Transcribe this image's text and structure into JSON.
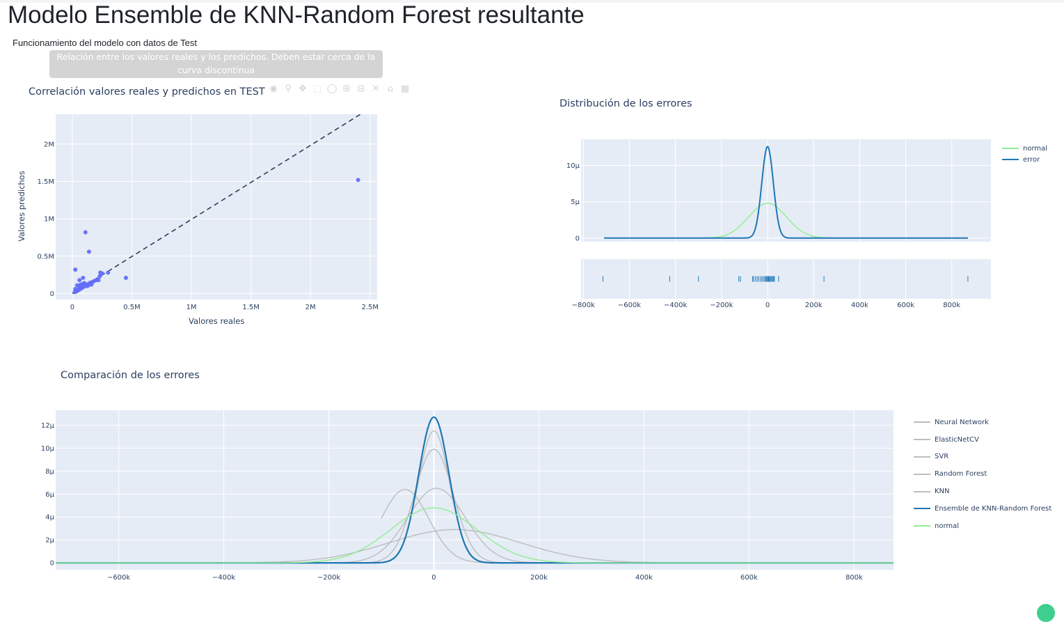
{
  "header": {
    "title": "Modelo Ensemble de KNN-Random Forest resultante",
    "subtitle": "Funcionamiento del modelo con datos de Test",
    "tooltip": "Relación entre los valores reales y los predichos. Deben estar cerca de la curva discontinua"
  },
  "colors": {
    "plot_bg": "#e5ecf6",
    "scatter": "#636efa",
    "error": "#1f77b4",
    "normal": "#90ee90",
    "other_models": "#bdbdbd",
    "dashed_line": "#2a3f5f"
  },
  "modebar": {
    "icons": [
      "camera-icon",
      "zoom-icon",
      "pan-icon",
      "box-select-icon",
      "lasso-icon",
      "zoom-in-icon",
      "zoom-out-icon",
      "autoscale-icon",
      "reset-axes-icon",
      "plotly-logo-icon"
    ]
  },
  "chart_data": [
    {
      "type": "scatter",
      "title": "Correlación valores reales y predichos en TEST",
      "xlabel": "Valores reales",
      "ylabel": "Valores predichos",
      "xlim": [
        -140000,
        2560000
      ],
      "ylim": [
        -80000,
        2400000
      ],
      "xticks": [
        0,
        500000,
        1000000,
        1500000,
        2000000,
        2500000
      ],
      "xticklabels": [
        "0",
        "0.5M",
        "1M",
        "1.5M",
        "2M",
        "2.5M"
      ],
      "yticks": [
        0,
        500000,
        1000000,
        1500000,
        2000000
      ],
      "yticklabels": [
        "0",
        "0.5M",
        "1M",
        "1.5M",
        "2M"
      ],
      "reference_line": {
        "style": "dashed",
        "x": [
          0,
          2420000
        ],
        "y": [
          0,
          2400000
        ]
      },
      "points": [
        [
          20000,
          20000
        ],
        [
          30000,
          25000
        ],
        [
          35000,
          40000
        ],
        [
          40000,
          35000
        ],
        [
          45000,
          50000
        ],
        [
          50000,
          45000
        ],
        [
          55000,
          60000
        ],
        [
          60000,
          55000
        ],
        [
          65000,
          70000
        ],
        [
          70000,
          65000
        ],
        [
          75000,
          80000
        ],
        [
          80000,
          75000
        ],
        [
          85000,
          90000
        ],
        [
          90000,
          85000
        ],
        [
          95000,
          100000
        ],
        [
          100000,
          95000
        ],
        [
          105000,
          110000
        ],
        [
          110000,
          105000
        ],
        [
          120000,
          115000
        ],
        [
          130000,
          125000
        ],
        [
          140000,
          130000
        ],
        [
          150000,
          145000
        ],
        [
          160000,
          140000
        ],
        [
          170000,
          155000
        ],
        [
          180000,
          165000
        ],
        [
          200000,
          180000
        ],
        [
          25000,
          60000
        ],
        [
          40000,
          110000
        ],
        [
          60000,
          90000
        ],
        [
          70000,
          120000
        ],
        [
          90000,
          130000
        ],
        [
          100000,
          140000
        ],
        [
          110000,
          120000
        ],
        [
          125000,
          100000
        ],
        [
          140000,
          115000
        ],
        [
          160000,
          120000
        ],
        [
          60000,
          180000
        ],
        [
          90000,
          210000
        ],
        [
          220000,
          180000
        ],
        [
          230000,
          230000
        ],
        [
          235000,
          280000
        ],
        [
          250000,
          270000
        ],
        [
          300000,
          280000
        ],
        [
          25000,
          320000
        ],
        [
          110000,
          820000
        ],
        [
          140000,
          560000
        ],
        [
          450000,
          210000
        ],
        [
          2400000,
          1520000
        ]
      ]
    },
    {
      "type": "line",
      "title": "Distribución de los errores",
      "xlim": [
        -810000,
        970000
      ],
      "ylim": [
        -0.5,
        13.6
      ],
      "ytick_unit": "µ",
      "yticks": [
        0,
        5,
        10
      ],
      "yticklabels": [
        "0",
        "5µ",
        "10µ"
      ],
      "xticks": [
        -800000,
        -600000,
        -400000,
        -200000,
        0,
        200000,
        400000,
        600000,
        800000
      ],
      "xticklabels": [
        "−800k",
        "−600k",
        "−400k",
        "−200k",
        "0",
        "200k",
        "400k",
        "600k",
        "800k"
      ],
      "series": [
        {
          "name": "normal",
          "kind": "gaussian",
          "mean": 0,
          "amplitude": 4.8,
          "sigma": 82000,
          "color": "#90ee90",
          "x_range": [
            -710000,
            870000
          ]
        },
        {
          "name": "error",
          "kind": "gaussian",
          "mean": 0,
          "amplitude": 12.6,
          "sigma": 25000,
          "color": "#1f77b4",
          "x_range": [
            -710000,
            870000
          ]
        }
      ],
      "rug": [
        -715000,
        -425000,
        -300000,
        -125000,
        -118000,
        -65000,
        -60000,
        -52000,
        -45000,
        -38000,
        -30000,
        -24000,
        -18000,
        -12000,
        -8000,
        -4000,
        0,
        3000,
        6000,
        10000,
        14000,
        18000,
        22000,
        26000,
        30000,
        48000,
        245000,
        870000
      ]
    },
    {
      "type": "line",
      "title": "Comparación de los errores",
      "xlim": [
        -720000,
        875000
      ],
      "ylim": [
        -0.6,
        13.3
      ],
      "ytick_unit": "µ",
      "yticks": [
        0,
        2,
        4,
        6,
        8,
        10,
        12
      ],
      "yticklabels": [
        "0",
        "2µ",
        "4µ",
        "6µ",
        "8µ",
        "10µ",
        "12µ"
      ],
      "xticks": [
        -600000,
        -400000,
        -200000,
        0,
        200000,
        400000,
        600000,
        800000
      ],
      "xticklabels": [
        "−600k",
        "−400k",
        "−200k",
        "0",
        "200k",
        "400k",
        "600k",
        "800k"
      ],
      "series": [
        {
          "name": "Neural Network",
          "kind": "gaussian",
          "mean": 40000,
          "amplitude": 2.9,
          "sigma": 125000,
          "color": "#bdbdbd",
          "x_range": [
            -720000,
            875000
          ]
        },
        {
          "name": "ElasticNetCV",
          "kind": "gaussian",
          "mean": 0,
          "amplitude": 11.5,
          "sigma": 30000,
          "color": "#bdbdbd",
          "x_range": [
            -720000,
            875000
          ]
        },
        {
          "name": "SVR",
          "kind": "gaussian",
          "mean": -55000,
          "amplitude": 6.4,
          "sigma": 45000,
          "color": "#bdbdbd",
          "x_range": [
            -100000,
            220000
          ]
        },
        {
          "name": "Random Forest",
          "kind": "gaussian",
          "mean": 0,
          "amplitude": 9.9,
          "sigma": 37000,
          "color": "#bdbdbd",
          "x_range": [
            -720000,
            875000
          ]
        },
        {
          "name": "KNN",
          "kind": "gaussian",
          "mean": 5000,
          "amplitude": 6.5,
          "sigma": 55000,
          "color": "#bdbdbd",
          "x_range": [
            -720000,
            875000
          ]
        },
        {
          "name": "Ensemble de KNN-Random Forest",
          "kind": "gaussian",
          "mean": 0,
          "amplitude": 12.7,
          "sigma": 29000,
          "color": "#1f77b4",
          "x_range": [
            -720000,
            875000
          ]
        },
        {
          "name": "normal",
          "kind": "gaussian",
          "mean": 0,
          "amplitude": 4.8,
          "sigma": 82000,
          "color": "#90ee90",
          "x_range": [
            -720000,
            875000
          ]
        }
      ]
    }
  ]
}
